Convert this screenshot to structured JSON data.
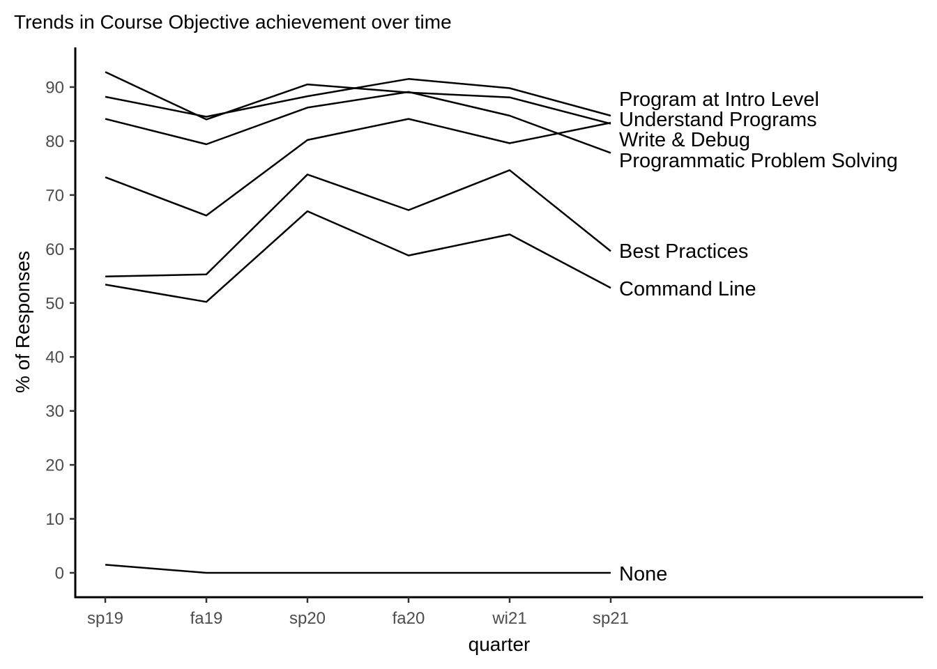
{
  "chart_data": {
    "type": "line",
    "title": "Trends in Course Objective achievement over time",
    "xlabel": "quarter",
    "ylabel": "% of Responses",
    "categories": [
      "sp19",
      "fa19",
      "sp20",
      "fa20",
      "wi21",
      "sp21"
    ],
    "y_ticks": [
      0,
      10,
      20,
      30,
      40,
      50,
      60,
      70,
      80,
      90
    ],
    "ylim": [
      -4.5,
      97
    ],
    "grid": false,
    "legend": "direct labels at line ends",
    "series": [
      {
        "name": "Program at Intro Level",
        "values": [
          88.2,
          84.5,
          88.3,
          91.5,
          89.8,
          84.7
        ]
      },
      {
        "name": "Understand Programs",
        "values": [
          92.8,
          84.0,
          90.5,
          89.0,
          88.1,
          83.2
        ]
      },
      {
        "name": "Write & Debug",
        "values": [
          84.1,
          79.4,
          86.2,
          89.1,
          84.7,
          77.8
        ]
      },
      {
        "name": "Programmatic Problem Solving",
        "values": [
          73.3,
          66.2,
          80.2,
          84.1,
          79.6,
          83.4
        ]
      },
      {
        "name": "Best Practices",
        "values": [
          54.9,
          55.3,
          73.8,
          67.2,
          74.6,
          59.6
        ]
      },
      {
        "name": "Command Line",
        "values": [
          53.4,
          50.2,
          67.0,
          58.8,
          62.7,
          52.8
        ]
      },
      {
        "name": "None",
        "values": [
          1.5,
          0.0,
          0.0,
          0.0,
          0.0,
          0.0
        ]
      }
    ]
  }
}
